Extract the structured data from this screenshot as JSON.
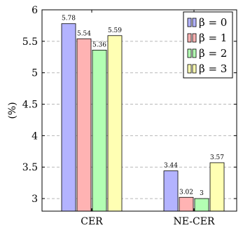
{
  "chart_data": {
    "type": "bar",
    "categories": [
      "CER",
      "NE-CER"
    ],
    "series": [
      {
        "name": "β = 0",
        "values": [
          5.78,
          3.44
        ],
        "color": "#b3b3ff"
      },
      {
        "name": "β = 1",
        "values": [
          5.54,
          3.02
        ],
        "color": "#ffb3b3"
      },
      {
        "name": "β = 2",
        "values": [
          5.36,
          3.0
        ],
        "color": "#b3ffb3"
      },
      {
        "name": "β = 3",
        "values": [
          5.59,
          3.57
        ],
        "color": "#ffffb3"
      }
    ],
    "data_labels": [
      [
        "5.78",
        "5.54",
        "5.36",
        "5.59"
      ],
      [
        "3.44",
        "3.02",
        "3",
        "3.57"
      ]
    ],
    "ylabel": "(%)",
    "ylim": [
      2.8,
      6
    ],
    "yticks": [
      3,
      3.5,
      4,
      4.5,
      5,
      5.5,
      6
    ],
    "ytick_labels": [
      "3",
      "3.5",
      "4",
      "4.5",
      "5",
      "5.5",
      "6"
    ],
    "grid": "horizontal dashed",
    "legend_placement": "top-right"
  }
}
